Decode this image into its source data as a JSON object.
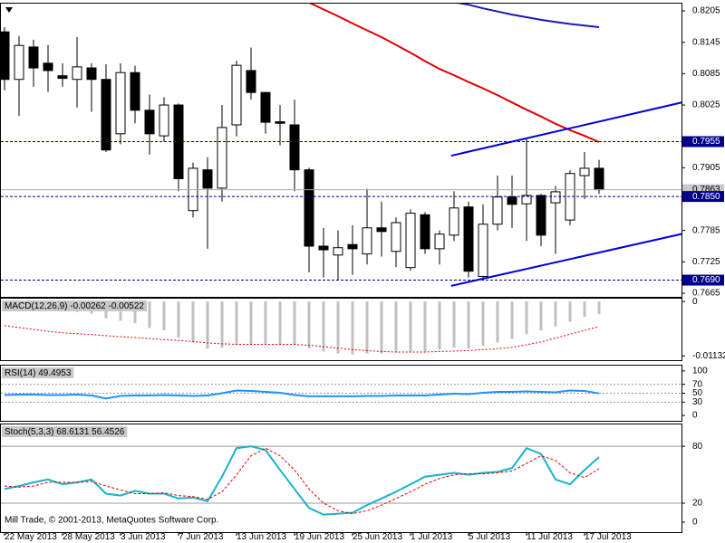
{
  "chart_data": [
    {
      "type": "candlestick",
      "categories": [
        "22 May 2013",
        null,
        null,
        null,
        "28 May 2013",
        null,
        null,
        null,
        "3 Jun 2013",
        null,
        null,
        null,
        "7 Jun 2013",
        null,
        null,
        null,
        "13 Jun 2013",
        null,
        null,
        null,
        "19 Jun 2013",
        null,
        null,
        null,
        "25 Jun 2013",
        null,
        null,
        null,
        "1 Jul 2013",
        null,
        null,
        null,
        "5 Jul 2013",
        null,
        null,
        null,
        "11 Jul 2013",
        null,
        null,
        null,
        "17 Jul 2013",
        null
      ],
      "open": [
        0.8165,
        0.8074,
        0.8136,
        0.8105,
        0.8081,
        0.8074,
        0.8096,
        0.8074,
        0.797,
        0.8087,
        0.8015,
        0.7966,
        0.8025,
        0.7823,
        0.7901,
        0.7866,
        0.7987,
        0.8091,
        0.8049,
        0.7993,
        0.7987,
        0.7901,
        0.7755,
        0.7738,
        0.7758,
        0.774,
        0.779,
        0.7745,
        0.7714,
        0.7815,
        0.775,
        0.7776,
        0.783,
        0.7697,
        0.7797,
        0.7849,
        0.7836,
        0.7852,
        0.7838,
        0.7805,
        0.789,
        0.7904
      ],
      "high": [
        0.8174,
        0.8157,
        0.815,
        0.814,
        0.8105,
        0.8155,
        0.8105,
        0.8103,
        0.8105,
        0.81,
        0.8045,
        0.804,
        0.8028,
        0.7915,
        0.7925,
        0.8025,
        0.811,
        0.8135,
        0.805,
        0.8025,
        0.8035,
        0.7905,
        0.779,
        0.7785,
        0.7795,
        0.7865,
        0.784,
        0.781,
        0.7825,
        0.782,
        0.7785,
        0.786,
        0.784,
        0.7835,
        0.789,
        0.789,
        0.796,
        0.7855,
        0.787,
        0.79,
        0.7935,
        0.792
      ],
      "low": [
        0.8053,
        0.8004,
        0.806,
        0.805,
        0.806,
        0.802,
        0.8012,
        0.7935,
        0.795,
        0.799,
        0.793,
        0.7955,
        0.786,
        0.781,
        0.775,
        0.784,
        0.7965,
        0.8035,
        0.797,
        0.7948,
        0.786,
        0.7705,
        0.7695,
        0.769,
        0.77,
        0.772,
        0.7735,
        0.7715,
        0.7708,
        0.774,
        0.772,
        0.7765,
        0.7695,
        0.769,
        0.7785,
        0.779,
        0.7765,
        0.7755,
        0.774,
        0.7795,
        0.7845,
        0.7855
      ],
      "close": [
        0.8074,
        0.8139,
        0.8096,
        0.8091,
        0.8076,
        0.8098,
        0.8074,
        0.7939,
        0.8087,
        0.8015,
        0.797,
        0.8025,
        0.7884,
        0.7904,
        0.7866,
        0.7982,
        0.8101,
        0.8049,
        0.7992,
        0.799,
        0.7901,
        0.7755,
        0.7748,
        0.7752,
        0.775,
        0.779,
        0.7783,
        0.78,
        0.7818,
        0.775,
        0.7778,
        0.7828,
        0.7707,
        0.7797,
        0.7849,
        0.7835,
        0.7852,
        0.7776,
        0.7859,
        0.7894,
        0.7904,
        0.7863
      ],
      "up_color": "#ffffff",
      "down_color": "#000000",
      "ylim": [
        0.7658,
        0.8219
      ],
      "yticks": [
        0.8205,
        0.8145,
        0.8085,
        0.8025,
        0.7905,
        0.7785,
        0.7725,
        0.7665
      ],
      "grid": false,
      "overlays": [
        {
          "color": "#e00000",
          "values": [
            null,
            null,
            null,
            null,
            null,
            null,
            null,
            null,
            null,
            null,
            null,
            null,
            null,
            null,
            null,
            null,
            null,
            null,
            null,
            null,
            null,
            0.8221,
            0.8208,
            0.8195,
            0.8181,
            0.8168,
            0.8155,
            0.814,
            0.8125,
            0.8109,
            0.8094,
            0.8082,
            0.8069,
            0.8057,
            0.8044,
            0.803,
            0.8016,
            0.8003,
            0.7989,
            0.7977,
            0.7966,
            0.7954
          ]
        },
        {
          "color": "#1a1ab0",
          "values": [
            null,
            null,
            null,
            null,
            null,
            null,
            null,
            null,
            null,
            null,
            null,
            null,
            null,
            null,
            null,
            null,
            null,
            null,
            null,
            null,
            null,
            null,
            null,
            null,
            null,
            null,
            null,
            null,
            null,
            null,
            null,
            0.8222,
            0.8217,
            0.821,
            0.8204,
            0.8198,
            0.8193,
            0.8188,
            0.8184,
            0.818,
            0.8177,
            0.8174
          ]
        }
      ],
      "trendlines": [
        {
          "color": "#0000dd",
          "x": [
            30.8,
            49.7
          ],
          "values": [
            0.7928,
            0.8049
          ]
        },
        {
          "color": "#0000dd",
          "x": [
            30.8,
            49.7
          ],
          "values": [
            0.7679,
            0.7797
          ]
        }
      ],
      "levels": [
        0.7955,
        {
          "value": 0.785,
          "label": "0.7850"
        },
        {
          "value": 0.769,
          "label": "0.7690"
        }
      ],
      "level_color": "#00008b",
      "current": 0.7863
    },
    {
      "type": "macd",
      "title": "MACD(12,26,9) -0.00262 -0.00522",
      "ylim": [
        -0.0122,
        0.0006
      ],
      "yticks": [
        0,
        -0.01132
      ],
      "series": [
        {
          "type": "bar",
          "color": "#c0c0c0",
          "values": [
            -0.001,
            -0.0012,
            -0.0015,
            -0.0018,
            -0.002,
            -0.0022,
            -0.0025,
            -0.0035,
            -0.004,
            -0.0045,
            -0.0055,
            -0.006,
            -0.0075,
            -0.0085,
            -0.0098,
            -0.0096,
            -0.009,
            -0.0088,
            -0.0088,
            -0.0088,
            -0.009,
            -0.0098,
            -0.0104,
            -0.0108,
            -0.011,
            -0.0108,
            -0.0108,
            -0.0106,
            -0.0104,
            -0.0104,
            -0.01,
            -0.0096,
            -0.0098,
            -0.0092,
            -0.0085,
            -0.0078,
            -0.0068,
            -0.006,
            -0.0052,
            -0.0042,
            -0.0032,
            -0.00262
          ]
        },
        {
          "type": "line",
          "color": "#e00000",
          "dash": "2 2",
          "values": [
            -0.005,
            -0.0054,
            -0.0058,
            -0.0062,
            -0.0065,
            -0.0067,
            -0.0069,
            -0.0071,
            -0.0073,
            -0.0075,
            -0.0077,
            -0.0079,
            -0.0081,
            -0.0083,
            -0.0086,
            -0.0088,
            -0.0089,
            -0.0089,
            -0.0089,
            -0.0089,
            -0.0089,
            -0.0091,
            -0.0094,
            -0.0097,
            -0.01,
            -0.0102,
            -0.0104,
            -0.0105,
            -0.0105,
            -0.0105,
            -0.0104,
            -0.0103,
            -0.0102,
            -0.01,
            -0.0098,
            -0.0095,
            -0.009,
            -0.0084,
            -0.0076,
            -0.0068,
            -0.006,
            -0.00522
          ]
        }
      ]
    },
    {
      "type": "line",
      "title": "RSI(14) 49.4953",
      "ylim": [
        -12,
        112
      ],
      "yticks": [
        100,
        70,
        50,
        30,
        0
      ],
      "level_lines": [
        70,
        50,
        30
      ],
      "level_dash": "2 2",
      "series": [
        {
          "type": "line",
          "color": "#1e90ff",
          "values": [
            46,
            47,
            47,
            46,
            46,
            47,
            45,
            38,
            44,
            45,
            45,
            46,
            45,
            44,
            45,
            50,
            56,
            55,
            53,
            51,
            46,
            43,
            43,
            43,
            43,
            44,
            44,
            45,
            45,
            45,
            47,
            49,
            48,
            51,
            53,
            53,
            54,
            53,
            52,
            56,
            55,
            49.4953
          ]
        }
      ]
    },
    {
      "type": "line",
      "title": "Stoch(5,3,3) 68.6131 56.4526",
      "ylim": [
        -10.5,
        103
      ],
      "yticks": [
        80,
        20,
        0
      ],
      "level_lines": [
        80,
        20
      ],
      "level_dash": "none",
      "footnote": "Mill Trade, © 2001-2013, MetaQuotes Software Corp.",
      "series": [
        {
          "type": "line",
          "color": "#17b3c9",
          "values": [
            35,
            38,
            42,
            45,
            40,
            42,
            45,
            30,
            28,
            33,
            30,
            30,
            25,
            26,
            22,
            48,
            78,
            80,
            76,
            55,
            35,
            15,
            8,
            9,
            10,
            18,
            25,
            32,
            40,
            48,
            50,
            52,
            50,
            52,
            53,
            57,
            78,
            72,
            45,
            40,
            55,
            68.6131
          ]
        },
        {
          "type": "line",
          "color": "#e00000",
          "dash": "3 2",
          "values": [
            38,
            37,
            38,
            42,
            42,
            42,
            43,
            38,
            34,
            30,
            30,
            31,
            28,
            27,
            24,
            32,
            50,
            70,
            78,
            70,
            55,
            35,
            20,
            12,
            9,
            12,
            18,
            25,
            32,
            40,
            46,
            50,
            51,
            51,
            52,
            54,
            62,
            70,
            65,
            52,
            47,
            56.4526
          ]
        }
      ]
    }
  ]
}
